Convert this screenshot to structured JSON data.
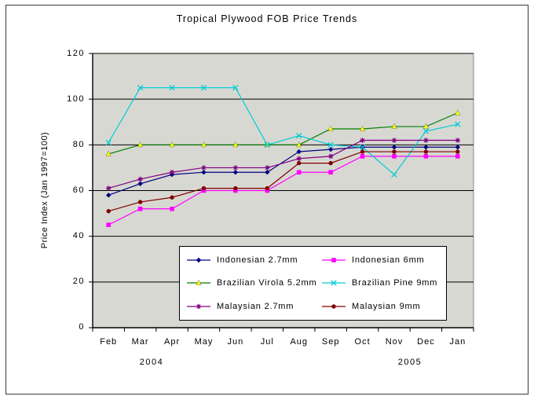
{
  "chart_data": {
    "type": "line",
    "title": "Tropical Plywood FOB Price Trends",
    "ylabel": "Price Index (Jan 1997=100)",
    "xlabel": "",
    "ylim": [
      0,
      120
    ],
    "yticks": [
      0,
      20,
      40,
      60,
      80,
      100,
      120
    ],
    "ytick_labels": [
      "0",
      "20",
      "40",
      "60",
      "80",
      "100",
      "120"
    ],
    "grid": true,
    "plot_bg": "#d8d8d2",
    "axis_color": "#000000",
    "legend_position": "inside-bottom-center",
    "categories": [
      "Feb",
      "Mar",
      "Apr",
      "May",
      "Jun",
      "Jul",
      "Aug",
      "Sep",
      "Oct",
      "Nov",
      "Dec",
      "Jan"
    ],
    "year_labels": [
      "2004",
      "2005"
    ],
    "series": [
      {
        "name": "Indonesian 2.7mm",
        "line_color": "#000080",
        "marker_color": "#000080",
        "marker": "diamond",
        "values": [
          58,
          63,
          67,
          68,
          68,
          68,
          77,
          78,
          79,
          79,
          79,
          79
        ]
      },
      {
        "name": "Indonesian 6mm",
        "line_color": "#ff00ff",
        "marker_color": "#ff00ff",
        "marker": "square",
        "values": [
          45,
          52,
          52,
          60,
          60,
          60,
          68,
          68,
          75,
          75,
          75,
          75
        ]
      },
      {
        "name": "Brazilian Virola 5.2mm",
        "line_color": "#008000",
        "marker_color": "#ffff00",
        "marker": "triangle",
        "values": [
          76,
          80,
          80,
          80,
          80,
          80,
          80,
          87,
          87,
          88,
          88,
          94
        ]
      },
      {
        "name": "Brazilian Pine 9mm",
        "line_color": "#00ccd4",
        "marker_color": "#00ccd4",
        "marker": "x",
        "values": [
          81,
          105,
          105,
          105,
          105,
          80,
          84,
          80,
          79,
          67,
          86,
          89
        ]
      },
      {
        "name": "Malaysian 2.7mm",
        "line_color": "#800080",
        "marker_color": "#800080",
        "marker": "asterisk",
        "values": [
          61,
          65,
          68,
          70,
          70,
          70,
          74,
          75,
          82,
          82,
          82,
          82
        ]
      },
      {
        "name": "Malaysian 9mm",
        "line_color": "#800000",
        "marker_color": "#800000",
        "marker": "circle",
        "values": [
          51,
          55,
          57,
          61,
          61,
          61,
          72,
          72,
          77,
          77,
          77,
          77
        ]
      }
    ]
  }
}
